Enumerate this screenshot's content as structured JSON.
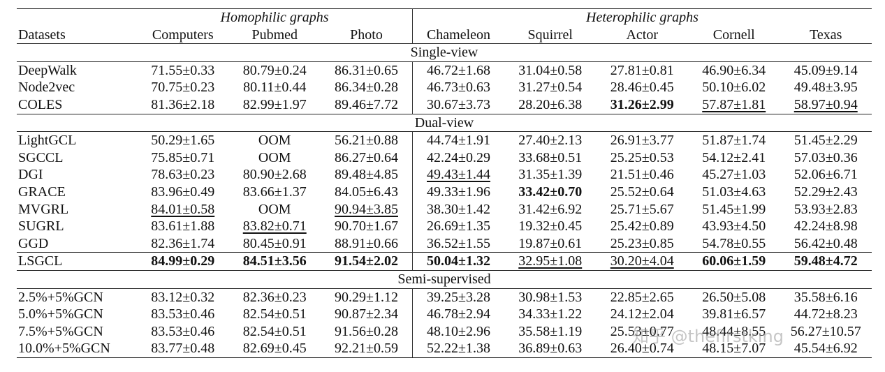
{
  "header": {
    "group_homophilic": "Homophilic graphs",
    "group_heterophilic": "Heterophilic graphs",
    "columns": [
      "Datasets",
      "Computers",
      "Pubmed",
      "Photo",
      "Chameleon",
      "Squirrel",
      "Actor",
      "Cornell",
      "Texas"
    ]
  },
  "sections": [
    {
      "title": "Single-view",
      "rows": [
        {
          "name": "DeepWalk",
          "cells": [
            "71.55±0.33",
            "80.79±0.24",
            "86.31±0.65",
            "46.72±1.68",
            "31.04±0.58",
            "27.81±0.81",
            "46.90±6.34",
            "45.09±9.14"
          ],
          "bold": [],
          "underline": []
        },
        {
          "name": "Node2vec",
          "cells": [
            "70.75±0.23",
            "80.11±0.44",
            "86.34±0.28",
            "46.73±0.63",
            "31.27±0.54",
            "28.46±0.45",
            "50.10±6.02",
            "49.48±3.95"
          ],
          "bold": [],
          "underline": []
        },
        {
          "name": "COLES",
          "cells": [
            "81.36±2.18",
            "82.99±1.97",
            "89.46±7.72",
            "30.67±3.73",
            "28.20±6.38",
            "31.26±2.99",
            "57.87±1.81",
            "58.97±0.94"
          ],
          "bold": [
            5
          ],
          "underline": [
            6,
            7
          ]
        }
      ]
    },
    {
      "title": "Dual-view",
      "rows": [
        {
          "name": "LightGCL",
          "cells": [
            "50.29±1.65",
            "OOM",
            "56.21±0.88",
            "44.74±1.91",
            "27.40±2.13",
            "26.91±3.77",
            "51.87±1.74",
            "51.45±2.29"
          ],
          "bold": [],
          "underline": []
        },
        {
          "name": "SGCCL",
          "cells": [
            "75.85±0.71",
            "OOM",
            "86.27±0.64",
            "42.24±0.29",
            "33.68±0.51",
            "25.25±0.53",
            "54.12±2.41",
            "57.03±0.36"
          ],
          "bold": [],
          "underline": []
        },
        {
          "name": "DGI",
          "cells": [
            "78.63±0.23",
            "80.90±2.68",
            "89.48±4.85",
            "49.43±1.44",
            "31.35±1.39",
            "21.51±0.46",
            "45.27±1.03",
            "52.06±6.71"
          ],
          "bold": [],
          "underline": [
            3
          ]
        },
        {
          "name": "GRACE",
          "cells": [
            "83.96±0.49",
            "83.66±1.37",
            "84.05±6.43",
            "49.33±1.96",
            "33.42±0.70",
            "25.52±0.64",
            "51.03±4.63",
            "52.29±2.43"
          ],
          "bold": [
            4
          ],
          "underline": []
        },
        {
          "name": "MVGRL",
          "cells": [
            "84.01±0.58",
            "OOM",
            "90.94±3.85",
            "38.30±1.42",
            "31.42±6.92",
            "25.71±5.67",
            "51.45±1.99",
            "53.93±2.83"
          ],
          "bold": [],
          "underline": [
            0,
            2
          ]
        },
        {
          "name": "SUGRL",
          "cells": [
            "83.61±1.88",
            "83.82±0.71",
            "90.70±1.67",
            "26.69±1.35",
            "19.32±0.45",
            "25.42±0.89",
            "43.93±4.50",
            "42.24±8.98"
          ],
          "bold": [],
          "underline": [
            1
          ]
        },
        {
          "name": "GGD",
          "cells": [
            "82.36±1.74",
            "80.45±0.91",
            "88.91±0.66",
            "36.52±1.55",
            "19.87±0.61",
            "25.23±0.85",
            "54.78±0.55",
            "56.42±0.48"
          ],
          "bold": [],
          "underline": []
        },
        {
          "name": "LSGCL",
          "cells": [
            "84.99±0.29",
            "84.51±3.56",
            "91.54±2.02",
            "50.04±1.32",
            "32.95±1.08",
            "30.20±4.04",
            "60.06±1.59",
            "59.48±4.72"
          ],
          "bold": [
            0,
            1,
            2,
            3,
            6,
            7
          ],
          "underline": [
            4,
            5
          ],
          "boxed": true
        }
      ]
    },
    {
      "title": "Semi-supervised",
      "rows": [
        {
          "name": "2.5%+5%GCN",
          "cells": [
            "83.12±0.32",
            "82.36±0.23",
            "90.29±1.12",
            "39.25±3.28",
            "30.98±1.53",
            "22.85±2.65",
            "26.50±5.08",
            "35.58±6.16"
          ],
          "bold": [],
          "underline": []
        },
        {
          "name": "5.0%+5%GCN",
          "cells": [
            "83.53±0.46",
            "82.54±0.51",
            "90.87±2.34",
            "46.78±2.94",
            "34.33±1.22",
            "24.12±2.04",
            "39.81±6.57",
            "44.72±8.23"
          ],
          "bold": [],
          "underline": []
        },
        {
          "name": "7.5%+5%GCN",
          "cells": [
            "83.53±0.46",
            "82.54±0.51",
            "91.56±0.28",
            "48.10±2.96",
            "35.58±1.19",
            "25.53±0.77",
            "48.44±8.55",
            "56.27±10.57"
          ],
          "bold": [],
          "underline": []
        },
        {
          "name": "10.0%+5%GCN",
          "cells": [
            "83.77±0.48",
            "82.69±0.45",
            "92.21±0.59",
            "52.22±1.38",
            "36.89±0.63",
            "26.40±0.74",
            "48.15±7.07",
            "45.54±6.92"
          ],
          "bold": [],
          "underline": []
        }
      ]
    }
  ],
  "watermark": "知乎 @thefirstking"
}
